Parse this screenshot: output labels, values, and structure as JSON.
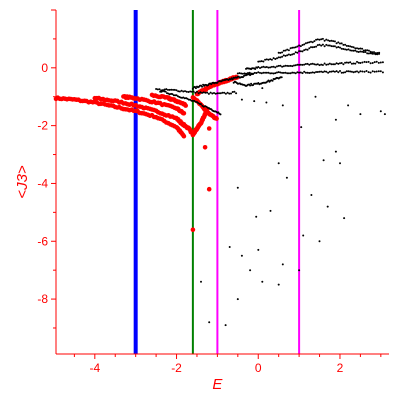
{
  "chart_data": {
    "type": "scatter",
    "title": "",
    "xlabel": "E",
    "ylabel": "<J3>",
    "xlim": [
      -4.95,
      3.2
    ],
    "ylim": [
      -9.9,
      2.0
    ],
    "xticks": [
      -4,
      -2,
      0,
      2
    ],
    "yticks": [
      0,
      -2,
      -4,
      -6,
      -8
    ],
    "axis_color": "#ff0000",
    "grid": false,
    "vertical_lines": [
      {
        "x": -3.0,
        "color": "#0000ff"
      },
      {
        "x": -1.6,
        "color": "#008000"
      },
      {
        "x": -1.0,
        "color": "#ff00ff"
      },
      {
        "x": 1.0,
        "color": "#ff00ff"
      }
    ],
    "series": [
      {
        "color": "#ff0000",
        "curves": [
          {
            "x": [
              -4.95,
              -4.5,
              -4.0,
              -3.5,
              -3.0,
              -2.5,
              -2.0,
              -1.8
            ],
            "y": [
              -1.05,
              -1.1,
              -1.2,
              -1.35,
              -1.5,
              -1.7,
              -2.05,
              -2.4
            ]
          },
          {
            "x": [
              -4.0,
              -3.5,
              -3.0,
              -2.5,
              -2.0,
              -1.8
            ],
            "y": [
              -1.05,
              -1.15,
              -1.3,
              -1.5,
              -1.75,
              -2.0
            ]
          },
          {
            "x": [
              -3.3,
              -3.0,
              -2.5,
              -2.0,
              -1.8
            ],
            "y": [
              -1.0,
              -1.05,
              -1.2,
              -1.4,
              -1.6
            ]
          },
          {
            "x": [
              -2.6,
              -2.2,
              -2.0,
              -1.75
            ],
            "y": [
              -0.95,
              -1.05,
              -1.15,
              -1.3
            ]
          },
          {
            "x": [
              -1.9,
              -1.7,
              -1.6,
              -1.5,
              -1.4,
              -1.3,
              -1.25
            ],
            "y": [
              -1.9,
              -2.1,
              -2.3,
              -2.1,
              -1.9,
              -1.6,
              -1.4
            ]
          },
          {
            "x": [
              -1.6,
              -1.4,
              -1.2,
              -1.0
            ],
            "y": [
              -1.0,
              -1.3,
              -1.6,
              -1.8
            ]
          },
          {
            "x": [
              -1.5,
              -1.3,
              -1.1,
              -0.9,
              -0.7,
              -0.5
            ],
            "y": [
              -0.9,
              -0.75,
              -0.6,
              -0.5,
              -0.4,
              -0.3
            ]
          }
        ],
        "points": [
          [
            -1.6,
            -5.6
          ],
          [
            -1.2,
            -4.2
          ],
          [
            -1.3,
            -2.75
          ],
          [
            -1.2,
            -2.1
          ]
        ]
      },
      {
        "color": "#000000",
        "curves": [
          {
            "x": [
              -2.5,
              -2.0,
              -1.5,
              -1.0,
              -0.5
            ],
            "y": [
              -0.75,
              -0.78,
              -0.85,
              -0.9,
              -0.85
            ]
          },
          {
            "x": [
              -2.4,
              -2.0,
              -1.6,
              -1.2,
              -0.9
            ],
            "y": [
              -0.8,
              -0.95,
              -1.15,
              -1.4,
              -1.6
            ]
          },
          {
            "x": [
              -1.6,
              -1.3,
              -1.0,
              -0.7,
              -0.4,
              -0.1
            ],
            "y": [
              -0.7,
              -0.6,
              -0.5,
              -0.4,
              -0.3,
              -0.2
            ]
          },
          {
            "x": [
              -0.5,
              0.0,
              0.5,
              1.0,
              1.5,
              2.0,
              2.5,
              3.1
            ],
            "y": [
              -0.2,
              -0.18,
              -0.17,
              -0.16,
              -0.15,
              -0.14,
              -0.14,
              -0.13
            ]
          },
          {
            "x": [
              -0.3,
              0.0,
              0.5,
              1.0,
              1.5,
              2.0,
              2.5,
              3.1
            ],
            "y": [
              -0.05,
              0.0,
              0.05,
              0.1,
              0.12,
              0.15,
              0.18,
              0.2
            ]
          },
          {
            "x": [
              0.0,
              0.5,
              1.0,
              1.5,
              2.0,
              2.5,
              3.0
            ],
            "y": [
              0.2,
              0.35,
              0.55,
              0.8,
              0.7,
              0.55,
              0.45
            ]
          },
          {
            "x": [
              0.5,
              1.0,
              1.5,
              2.0,
              2.5,
              3.0
            ],
            "y": [
              0.5,
              0.75,
              1.0,
              0.85,
              0.65,
              0.5
            ]
          },
          {
            "x": [
              -0.6,
              -0.3,
              0.0,
              0.3,
              0.6
            ],
            "y": [
              -0.5,
              -0.6,
              -0.55,
              -0.45,
              -0.3
            ]
          }
        ],
        "points": [
          [
            -1.4,
            -7.4
          ],
          [
            -1.2,
            -8.8
          ],
          [
            -0.8,
            -8.9
          ],
          [
            -0.7,
            -6.2
          ],
          [
            -0.5,
            -8.0
          ],
          [
            -0.4,
            -6.5
          ],
          [
            -0.5,
            -4.15
          ],
          [
            -0.2,
            -7.0
          ],
          [
            0.1,
            -7.4
          ],
          [
            0.0,
            -6.3
          ],
          [
            -0.05,
            -5.15
          ],
          [
            0.3,
            -4.95
          ],
          [
            0.5,
            -3.3
          ],
          [
            0.6,
            -6.8
          ],
          [
            0.7,
            -3.8
          ],
          [
            0.5,
            -7.5
          ],
          [
            1.0,
            -7.0
          ],
          [
            1.1,
            -5.8
          ],
          [
            1.3,
            -4.4
          ],
          [
            1.5,
            -6.0
          ],
          [
            1.6,
            -3.2
          ],
          [
            1.7,
            -4.8
          ],
          [
            1.9,
            -2.9
          ],
          [
            2.0,
            -3.3
          ],
          [
            2.1,
            -5.2
          ],
          [
            1.05,
            -2.05
          ],
          [
            1.9,
            -1.8
          ],
          [
            2.5,
            -1.6
          ],
          [
            3.0,
            -1.5
          ],
          [
            3.1,
            -1.6
          ],
          [
            -0.1,
            -1.15
          ],
          [
            0.2,
            -1.2
          ],
          [
            0.6,
            -1.3
          ],
          [
            -0.4,
            -1.1
          ],
          [
            0.1,
            -0.7
          ],
          [
            1.4,
            -1.0
          ],
          [
            2.2,
            -1.3
          ]
        ]
      }
    ]
  }
}
